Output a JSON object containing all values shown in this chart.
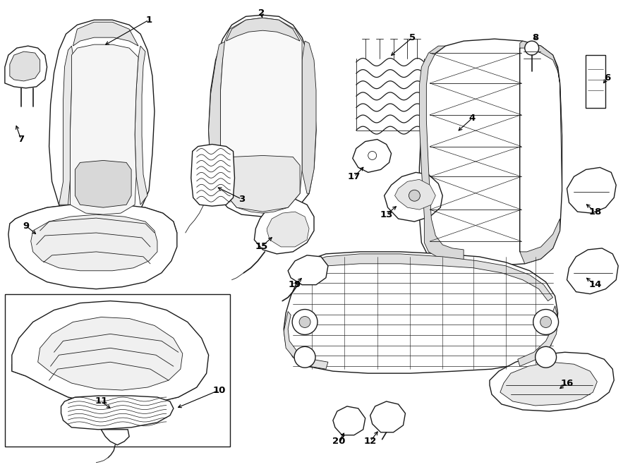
{
  "bg_color": "#ffffff",
  "line_color": "#1a1a1a",
  "fig_width": 9.0,
  "fig_height": 6.62,
  "dpi": 100,
  "labels": {
    "1": [
      2.1,
      6.35,
      1.38,
      5.95
    ],
    "2": [
      3.7,
      6.38,
      3.72,
      6.25
    ],
    "3": [
      3.45,
      3.85,
      3.18,
      4.05
    ],
    "4": [
      6.72,
      4.98,
      6.55,
      4.75
    ],
    "5": [
      5.88,
      6.08,
      5.68,
      5.85
    ],
    "6": [
      8.6,
      5.55,
      8.45,
      5.42
    ],
    "7": [
      0.32,
      4.68,
      0.22,
      4.9
    ],
    "8": [
      7.62,
      6.05,
      7.55,
      5.78
    ],
    "9": [
      0.38,
      3.45,
      0.6,
      3.3
    ],
    "10": [
      3.12,
      1.12,
      2.55,
      0.88
    ],
    "11": [
      1.45,
      0.95,
      1.58,
      0.82
    ],
    "12": [
      5.28,
      0.38,
      5.35,
      0.55
    ],
    "13": [
      5.52,
      3.62,
      5.72,
      3.75
    ],
    "14": [
      8.42,
      2.62,
      8.25,
      2.72
    ],
    "15": [
      3.72,
      3.15,
      3.85,
      3.35
    ],
    "16": [
      8.02,
      1.22,
      7.88,
      1.08
    ],
    "17": [
      5.05,
      4.15,
      5.18,
      4.28
    ],
    "18": [
      8.42,
      3.65,
      8.28,
      3.75
    ],
    "19": [
      4.22,
      2.62,
      4.35,
      2.75
    ],
    "20": [
      4.82,
      0.38,
      4.92,
      0.52
    ]
  }
}
